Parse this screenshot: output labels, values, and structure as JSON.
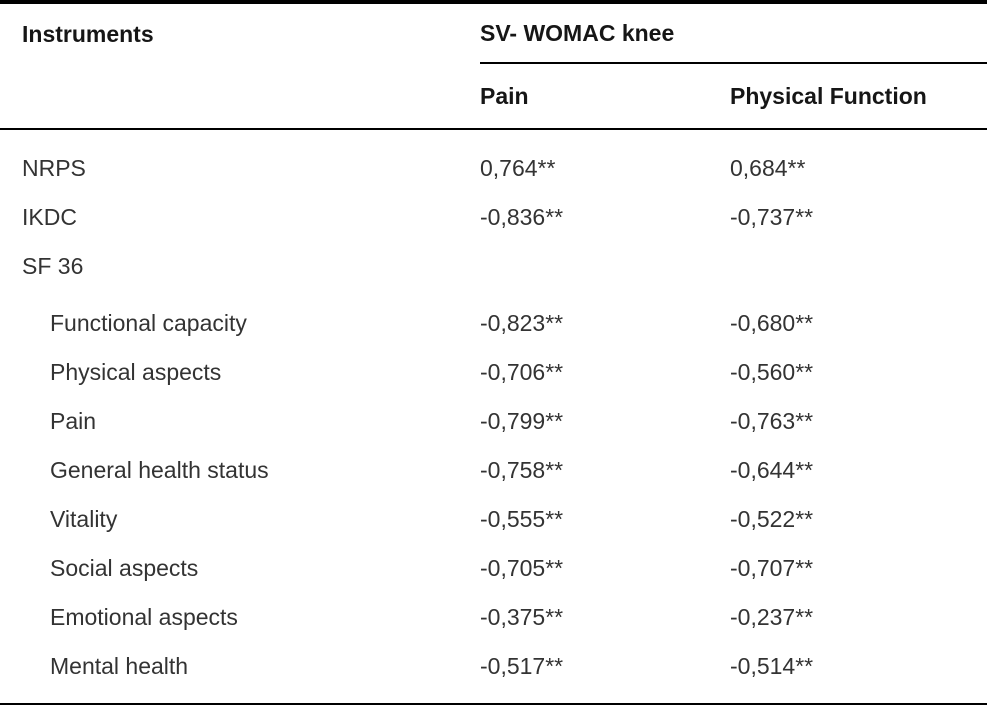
{
  "table": {
    "instruments_header": "Instruments",
    "column_group_header": "SV- WOMAC knee",
    "sub_headers": {
      "pain": "Pain",
      "physical_function": "Physical Function"
    },
    "rows": [
      {
        "label": "NRPS",
        "indent": false,
        "gap_before": false,
        "pain": "0,764**",
        "physical_function": "0,684**"
      },
      {
        "label": "IKDC",
        "indent": false,
        "gap_before": false,
        "pain": "-0,836**",
        "physical_function": "-0,737**"
      },
      {
        "label": "SF 36",
        "indent": false,
        "gap_before": false,
        "pain": "",
        "physical_function": ""
      },
      {
        "label": "Functional capacity",
        "indent": true,
        "gap_before": true,
        "pain": "-0,823**",
        "physical_function": "-0,680**"
      },
      {
        "label": "Physical aspects",
        "indent": true,
        "gap_before": false,
        "pain": "-0,706**",
        "physical_function": "-0,560**"
      },
      {
        "label": "Pain",
        "indent": true,
        "gap_before": false,
        "pain": "-0,799**",
        "physical_function": "-0,763**"
      },
      {
        "label": "General health status",
        "indent": true,
        "gap_before": false,
        "pain": "-0,758**",
        "physical_function": "-0,644**"
      },
      {
        "label": "Vitality",
        "indent": true,
        "gap_before": false,
        "pain": "-0,555**",
        "physical_function": "-0,522**"
      },
      {
        "label": "Social aspects",
        "indent": true,
        "gap_before": false,
        "pain": "-0,705**",
        "physical_function": "-0,707**"
      },
      {
        "label": "Emotional aspects",
        "indent": true,
        "gap_before": false,
        "pain": "-0,375**",
        "physical_function": "-0,237**"
      },
      {
        "label": "Mental health",
        "indent": true,
        "gap_before": false,
        "pain": "-0,517**",
        "physical_function": "-0,514**"
      }
    ],
    "colors": {
      "rule": "#000000",
      "header_text": "#161616",
      "body_text": "#333333",
      "background": "#ffffff"
    }
  }
}
